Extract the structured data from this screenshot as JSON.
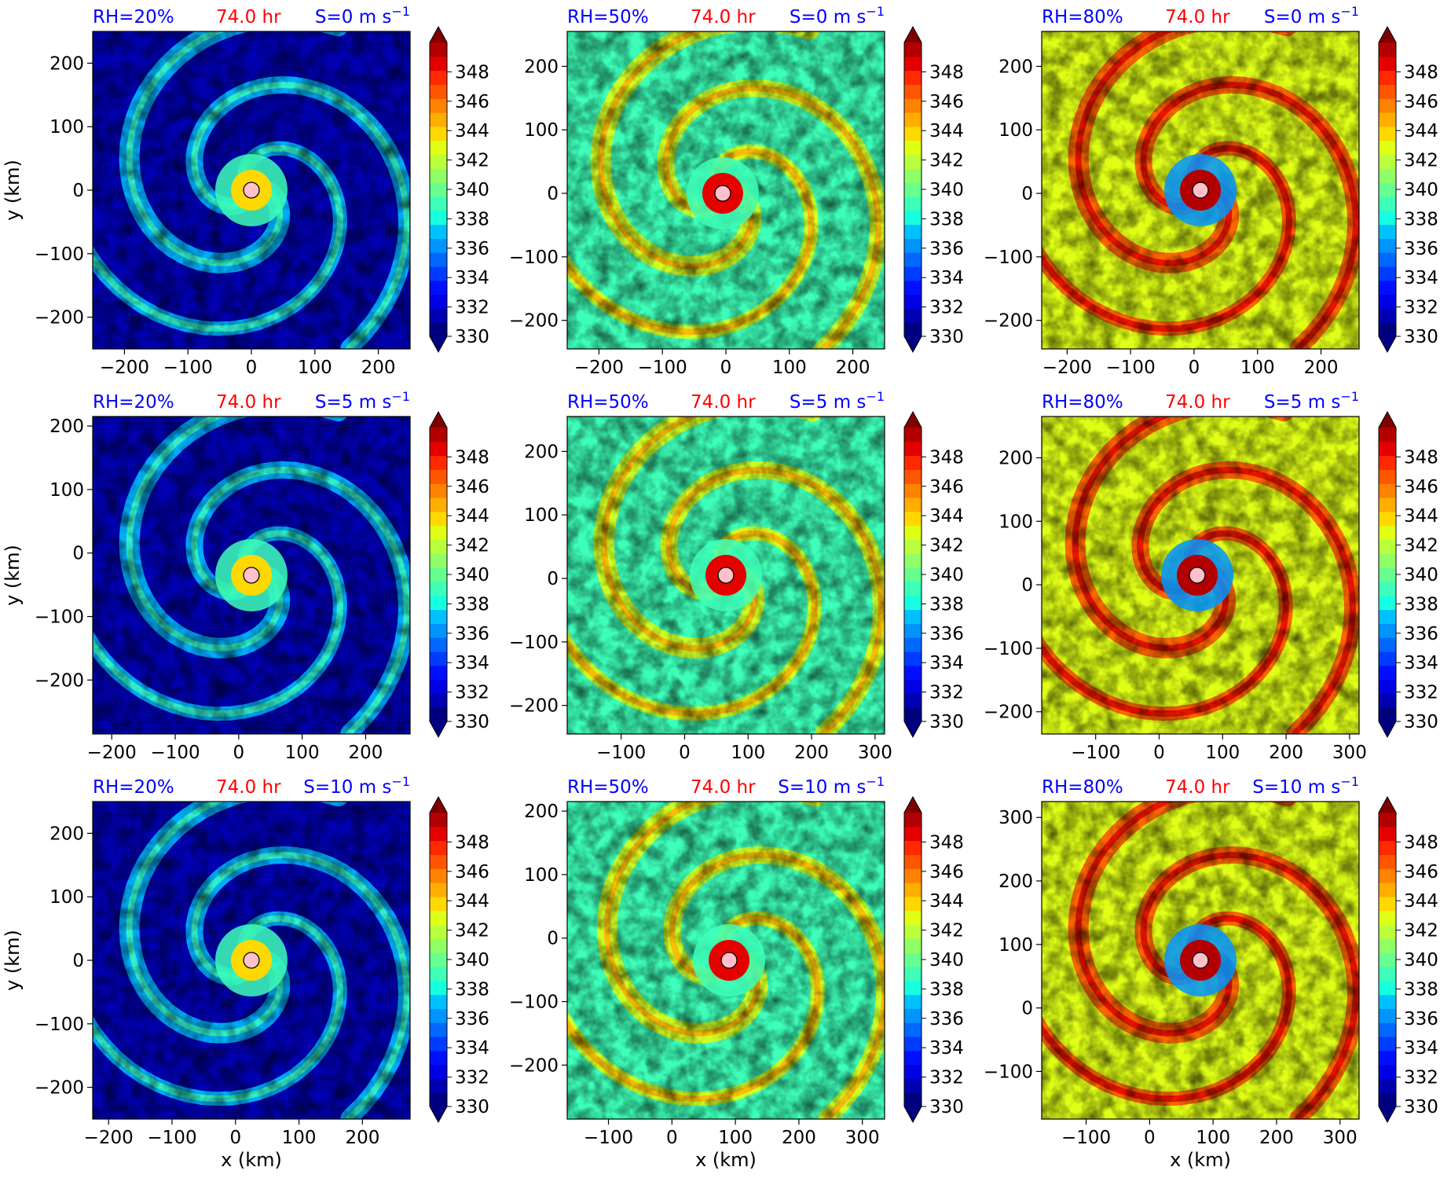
{
  "colorbar": {
    "ticks": [
      "330",
      "332",
      "334",
      "336",
      "338",
      "340",
      "342",
      "344",
      "346",
      "348"
    ],
    "vmin": 330,
    "vmax": 350,
    "step": 1,
    "extend": "both",
    "colormap": "jet",
    "colors": [
      "#00007f",
      "#0000b2",
      "#0000e5",
      "#0010ff",
      "#003cff",
      "#0068ff",
      "#0094ff",
      "#00c0ff",
      "#16ffe0",
      "#3dffb9",
      "#66ff90",
      "#90ff66",
      "#b9ff3d",
      "#e0ff16",
      "#ffd800",
      "#ffae00",
      "#ff8200",
      "#ff5600",
      "#ff2a00",
      "#e50000",
      "#b20000"
    ],
    "under_color": "#000080",
    "over_color": "#7f0000"
  },
  "colors": {
    "rh_label": "#0000ff",
    "time_label": "#ff0000",
    "shear_label": "#0000ff",
    "center_marker": "#ffc0cb"
  },
  "shear_unit": "m s",
  "shear_exp": "−1",
  "chart_data": [
    {
      "type": "heatmap",
      "rh": "RH=20%",
      "time": "74.0 hr",
      "shear_value": "S=0",
      "pattern": "dry",
      "xticks": [
        "−200",
        "−100",
        "0",
        "100",
        "200"
      ],
      "yticks": [
        "200",
        "100",
        "0",
        "−100",
        "−200"
      ],
      "xlabel": "",
      "ylabel": "y (km)",
      "xlim": [
        -250,
        250
      ],
      "ylim": [
        -250,
        250
      ],
      "center": [
        0,
        0
      ]
    },
    {
      "type": "heatmap",
      "rh": "RH=50%",
      "time": "74.0 hr",
      "shear_value": "S=0",
      "pattern": "mid",
      "xticks": [
        "−200",
        "−100",
        "0",
        "100",
        "200"
      ],
      "yticks": [
        "200",
        "100",
        "0",
        "−100",
        "−200"
      ],
      "xlabel": "",
      "ylabel": "",
      "xlim": [
        -250,
        250
      ],
      "ylim": [
        -245,
        255
      ],
      "center": [
        -5,
        0
      ]
    },
    {
      "type": "heatmap",
      "rh": "RH=80%",
      "time": "74.0 hr",
      "shear_value": "S=0",
      "pattern": "moist",
      "xticks": [
        "−200",
        "−100",
        "0",
        "100",
        "200"
      ],
      "yticks": [
        "200",
        "100",
        "0",
        "−100",
        "−200"
      ],
      "xlabel": "",
      "ylabel": "",
      "xlim": [
        -240,
        260
      ],
      "ylim": [
        -245,
        255
      ],
      "center": [
        10,
        5
      ]
    },
    {
      "type": "heatmap",
      "rh": "RH=20%",
      "time": "74.0 hr",
      "shear_value": "S=5",
      "pattern": "dry",
      "xticks": [
        "−200",
        "−100",
        "0",
        "100",
        "200"
      ],
      "yticks": [
        "200",
        "100",
        "0",
        "−100",
        "−200"
      ],
      "xlabel": "",
      "ylabel": "y (km)",
      "xlim": [
        -230,
        270
      ],
      "ylim": [
        -285,
        215
      ],
      "center": [
        20,
        -35
      ]
    },
    {
      "type": "heatmap",
      "rh": "RH=50%",
      "time": "74.0 hr",
      "shear_value": "S=5",
      "pattern": "mid",
      "xticks": [
        "−100",
        "0",
        "100",
        "200",
        "300"
      ],
      "yticks": [
        "200",
        "100",
        "0",
        "−100",
        "−200"
      ],
      "xlabel": "",
      "ylabel": "",
      "xlim": [
        -185,
        315
      ],
      "ylim": [
        -245,
        255
      ],
      "center": [
        65,
        5
      ]
    },
    {
      "type": "heatmap",
      "rh": "RH=80%",
      "time": "74.0 hr",
      "shear_value": "S=5",
      "pattern": "moist",
      "xticks": [
        "−100",
        "0",
        "100",
        "200",
        "300"
      ],
      "yticks": [
        "200",
        "100",
        "0",
        "−100",
        "−200"
      ],
      "xlabel": "",
      "ylabel": "",
      "xlim": [
        -185,
        315
      ],
      "ylim": [
        -235,
        265
      ],
      "center": [
        60,
        15
      ]
    },
    {
      "type": "heatmap",
      "rh": "RH=20%",
      "time": "74.0 hr",
      "shear_value": "S=10",
      "pattern": "dry",
      "xticks": [
        "−200",
        "−100",
        "0",
        "100",
        "200"
      ],
      "yticks": [
        "200",
        "100",
        "0",
        "−100",
        "−200"
      ],
      "xlabel": "x (km)",
      "ylabel": "y (km)",
      "xlim": [
        -225,
        275
      ],
      "ylim": [
        -250,
        250
      ],
      "center": [
        25,
        0
      ]
    },
    {
      "type": "heatmap",
      "rh": "RH=50%",
      "time": "74.0 hr",
      "shear_value": "S=10",
      "pattern": "mid",
      "xticks": [
        "−100",
        "0",
        "100",
        "200",
        "300"
      ],
      "yticks": [
        "200",
        "100",
        "0",
        "−100",
        "−200"
      ],
      "xlabel": "x (km)",
      "ylabel": "",
      "xlim": [
        -165,
        335
      ],
      "ylim": [
        -285,
        215
      ],
      "center": [
        90,
        -35
      ]
    },
    {
      "type": "heatmap",
      "rh": "RH=80%",
      "time": "74.0 hr",
      "shear_value": "S=10",
      "pattern": "moist",
      "xticks": [
        "−100",
        "0",
        "100",
        "200",
        "300"
      ],
      "yticks": [
        "300",
        "200",
        "100",
        "0",
        "−100"
      ],
      "xlabel": "x (km)",
      "ylabel": "",
      "xlim": [
        -170,
        330
      ],
      "ylim": [
        -175,
        325
      ],
      "center": [
        80,
        75
      ]
    }
  ]
}
